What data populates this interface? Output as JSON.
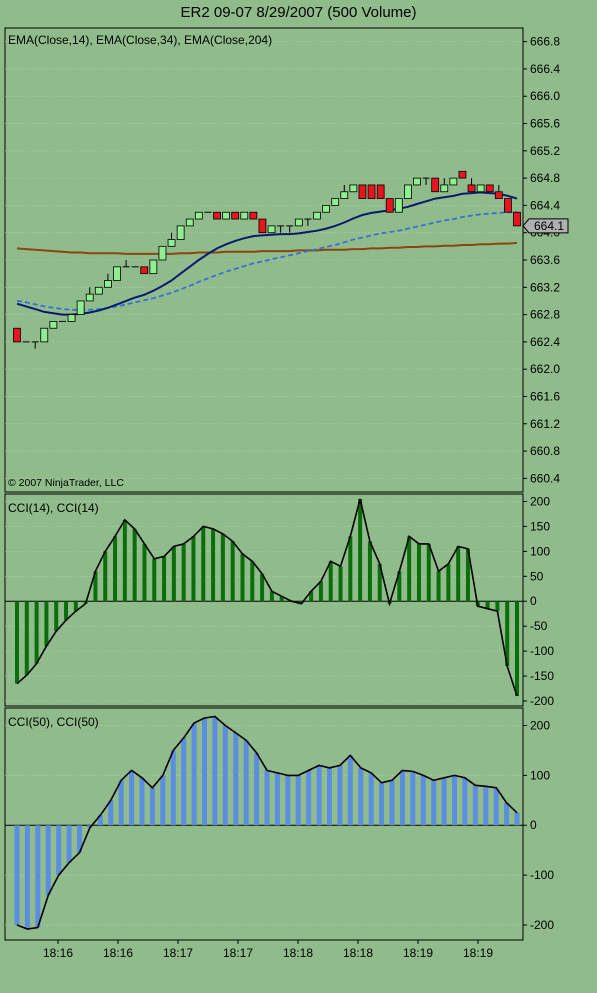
{
  "title": "ER2 09-07  8/29/2007  (500 Volume)",
  "colors": {
    "background": "#8fbc8a",
    "grid": "#c8d6c4",
    "axis": "#000000",
    "up_candle": "#90ee90",
    "down_candle": "#e8141e",
    "ema14": "#0a1a6e",
    "ema34": "#3a6fd6",
    "ema204": "#8b4513",
    "cci14_bar": "#0a6e0a",
    "cci50_bar": "#5b8de0",
    "cci_line": "#000000",
    "price_marker": "#b0b0b0"
  },
  "chart_data": [
    {
      "type": "candlestick",
      "name": "price-panel",
      "title": "EMA(Close,14), EMA(Close,34), EMA(Close,204)",
      "copyright": "© 2007 NinjaTrader, LLC",
      "ylim": [
        660.2,
        667.0
      ],
      "yticks": [
        "666.8",
        "666.4",
        "666.0",
        "665.6",
        "665.2",
        "664.8",
        "664.4",
        "664.0",
        "663.6",
        "663.2",
        "662.8",
        "662.4",
        "662.0",
        "661.6",
        "661.2",
        "660.8",
        "660.4"
      ],
      "last_price_label": "664.1",
      "candles": [
        {
          "o": 662.6,
          "h": 662.6,
          "l": 662.4,
          "c": 662.4
        },
        {
          "o": 662.4,
          "h": 662.4,
          "l": 662.4,
          "c": 662.4
        },
        {
          "o": 662.4,
          "h": 662.4,
          "l": 662.3,
          "c": 662.4
        },
        {
          "o": 662.4,
          "h": 662.6,
          "l": 662.4,
          "c": 662.6
        },
        {
          "o": 662.6,
          "h": 662.7,
          "l": 662.6,
          "c": 662.7
        },
        {
          "o": 662.7,
          "h": 662.7,
          "l": 662.7,
          "c": 662.7
        },
        {
          "o": 662.7,
          "h": 662.8,
          "l": 662.7,
          "c": 662.8
        },
        {
          "o": 662.8,
          "h": 663.0,
          "l": 662.8,
          "c": 663.0
        },
        {
          "o": 663.0,
          "h": 663.2,
          "l": 663.0,
          "c": 663.1
        },
        {
          "o": 663.1,
          "h": 663.2,
          "l": 663.1,
          "c": 663.2
        },
        {
          "o": 663.2,
          "h": 663.4,
          "l": 663.2,
          "c": 663.3
        },
        {
          "o": 663.3,
          "h": 663.5,
          "l": 663.3,
          "c": 663.5
        },
        {
          "o": 663.5,
          "h": 663.6,
          "l": 663.5,
          "c": 663.5
        },
        {
          "o": 663.5,
          "h": 663.5,
          "l": 663.5,
          "c": 663.5
        },
        {
          "o": 663.5,
          "h": 663.5,
          "l": 663.4,
          "c": 663.4
        },
        {
          "o": 663.4,
          "h": 663.6,
          "l": 663.4,
          "c": 663.6
        },
        {
          "o": 663.6,
          "h": 663.8,
          "l": 663.6,
          "c": 663.8
        },
        {
          "o": 663.8,
          "h": 664.0,
          "l": 663.8,
          "c": 663.9
        },
        {
          "o": 663.9,
          "h": 664.1,
          "l": 663.9,
          "c": 664.1
        },
        {
          "o": 664.1,
          "h": 664.2,
          "l": 664.1,
          "c": 664.2
        },
        {
          "o": 664.2,
          "h": 664.3,
          "l": 664.2,
          "c": 664.3
        },
        {
          "o": 664.3,
          "h": 664.3,
          "l": 664.3,
          "c": 664.3
        },
        {
          "o": 664.3,
          "h": 664.3,
          "l": 664.2,
          "c": 664.2
        },
        {
          "o": 664.2,
          "h": 664.3,
          "l": 664.2,
          "c": 664.3
        },
        {
          "o": 664.3,
          "h": 664.3,
          "l": 664.2,
          "c": 664.2
        },
        {
          "o": 664.2,
          "h": 664.3,
          "l": 664.2,
          "c": 664.3
        },
        {
          "o": 664.3,
          "h": 664.3,
          "l": 664.2,
          "c": 664.2
        },
        {
          "o": 664.2,
          "h": 664.2,
          "l": 664.0,
          "c": 664.0
        },
        {
          "o": 664.0,
          "h": 664.1,
          "l": 664.0,
          "c": 664.1
        },
        {
          "o": 664.1,
          "h": 664.1,
          "l": 664.0,
          "c": 664.1
        },
        {
          "o": 664.1,
          "h": 664.1,
          "l": 664.0,
          "c": 664.1
        },
        {
          "o": 664.1,
          "h": 664.2,
          "l": 664.1,
          "c": 664.2
        },
        {
          "o": 664.2,
          "h": 664.2,
          "l": 664.1,
          "c": 664.2
        },
        {
          "o": 664.2,
          "h": 664.3,
          "l": 664.2,
          "c": 664.3
        },
        {
          "o": 664.3,
          "h": 664.4,
          "l": 664.3,
          "c": 664.4
        },
        {
          "o": 664.4,
          "h": 664.5,
          "l": 664.4,
          "c": 664.5
        },
        {
          "o": 664.5,
          "h": 664.7,
          "l": 664.5,
          "c": 664.6
        },
        {
          "o": 664.6,
          "h": 664.7,
          "l": 664.6,
          "c": 664.7
        },
        {
          "o": 664.7,
          "h": 664.7,
          "l": 664.5,
          "c": 664.5
        },
        {
          "o": 664.7,
          "h": 664.7,
          "l": 664.5,
          "c": 664.5
        },
        {
          "o": 664.7,
          "h": 664.7,
          "l": 664.5,
          "c": 664.5
        },
        {
          "o": 664.5,
          "h": 664.5,
          "l": 664.3,
          "c": 664.3
        },
        {
          "o": 664.3,
          "h": 664.5,
          "l": 664.3,
          "c": 664.5
        },
        {
          "o": 664.5,
          "h": 664.7,
          "l": 664.5,
          "c": 664.7
        },
        {
          "o": 664.7,
          "h": 664.8,
          "l": 664.7,
          "c": 664.8
        },
        {
          "o": 664.8,
          "h": 664.8,
          "l": 664.7,
          "c": 664.8
        },
        {
          "o": 664.8,
          "h": 664.8,
          "l": 664.6,
          "c": 664.6
        },
        {
          "o": 664.6,
          "h": 664.8,
          "l": 664.6,
          "c": 664.7
        },
        {
          "o": 664.7,
          "h": 664.8,
          "l": 664.7,
          "c": 664.8
        },
        {
          "o": 664.9,
          "h": 664.9,
          "l": 664.8,
          "c": 664.8
        },
        {
          "o": 664.7,
          "h": 664.8,
          "l": 664.6,
          "c": 664.6
        },
        {
          "o": 664.6,
          "h": 664.7,
          "l": 664.6,
          "c": 664.7
        },
        {
          "o": 664.7,
          "h": 664.7,
          "l": 664.6,
          "c": 664.6
        },
        {
          "o": 664.6,
          "h": 664.7,
          "l": 664.5,
          "c": 664.5
        },
        {
          "o": 664.5,
          "h": 664.5,
          "l": 664.3,
          "c": 664.3
        },
        {
          "o": 664.3,
          "h": 664.3,
          "l": 664.1,
          "c": 664.1
        }
      ],
      "ema14": [
        662.96,
        662.92,
        662.88,
        662.84,
        662.82,
        662.8,
        662.8,
        662.81,
        662.83,
        662.86,
        662.9,
        662.95,
        663.0,
        663.05,
        663.09,
        663.15,
        663.22,
        663.3,
        663.4,
        663.5,
        663.6,
        663.69,
        663.77,
        663.83,
        663.88,
        663.92,
        663.95,
        663.96,
        663.97,
        663.98,
        663.98,
        663.99,
        664.01,
        664.03,
        664.06,
        664.1,
        664.15,
        664.21,
        664.26,
        664.29,
        664.31,
        664.33,
        664.35,
        664.38,
        664.42,
        664.46,
        664.5,
        664.52,
        664.54,
        664.57,
        664.58,
        664.59,
        664.58,
        664.57,
        664.54,
        664.5
      ],
      "ema34": [
        663.0,
        662.98,
        662.95,
        662.92,
        662.9,
        662.88,
        662.87,
        662.87,
        662.87,
        662.88,
        662.9,
        662.92,
        662.95,
        662.98,
        663.01,
        663.04,
        663.08,
        663.12,
        663.17,
        663.22,
        663.28,
        663.33,
        663.38,
        663.43,
        663.47,
        663.51,
        663.55,
        663.58,
        663.61,
        663.64,
        663.67,
        663.7,
        663.73,
        663.76,
        663.79,
        663.82,
        663.86,
        663.9,
        663.93,
        663.96,
        663.99,
        664.01,
        664.03,
        664.06,
        664.09,
        664.12,
        664.15,
        664.18,
        664.2,
        664.23,
        664.25,
        664.27,
        664.28,
        664.29,
        664.3,
        664.3
      ],
      "ema204": [
        663.77,
        663.76,
        663.75,
        663.74,
        663.73,
        663.72,
        663.71,
        663.71,
        663.7,
        663.7,
        663.7,
        663.7,
        663.69,
        663.69,
        663.69,
        663.69,
        663.69,
        663.69,
        663.7,
        663.7,
        663.71,
        663.71,
        663.71,
        663.72,
        663.72,
        663.72,
        663.72,
        663.73,
        663.73,
        663.73,
        663.73,
        663.74,
        663.74,
        663.74,
        663.75,
        663.75,
        663.75,
        663.76,
        663.76,
        663.77,
        663.77,
        663.78,
        663.78,
        663.79,
        663.79,
        663.8,
        663.8,
        663.81,
        663.81,
        663.82,
        663.82,
        663.83,
        663.83,
        663.84,
        663.84,
        663.85
      ]
    },
    {
      "type": "bar",
      "name": "cci14-panel",
      "title": "CCI(14), CCI(14)",
      "ylim": [
        -210,
        215
      ],
      "yticks": [
        "200",
        "150",
        "100",
        "50",
        "0",
        "-50",
        "-100",
        "-150",
        "-200"
      ],
      "values": [
        -165,
        -148,
        -125,
        -90,
        -60,
        -38,
        -20,
        -5,
        60,
        100,
        130,
        163,
        145,
        115,
        85,
        90,
        110,
        115,
        130,
        150,
        145,
        135,
        120,
        95,
        80,
        55,
        20,
        10,
        0,
        -5,
        20,
        40,
        80,
        70,
        130,
        205,
        120,
        75,
        -5,
        60,
        130,
        115,
        115,
        60,
        75,
        110,
        105,
        -10,
        -15,
        -20,
        -130,
        -190
      ]
    },
    {
      "type": "bar",
      "name": "cci50-panel",
      "title": "CCI(50), CCI(50)",
      "ylim": [
        -230,
        235
      ],
      "yticks": [
        "200",
        "100",
        "0",
        "-100",
        "-200"
      ],
      "values": [
        -200,
        -208,
        -205,
        -140,
        -100,
        -75,
        -55,
        -5,
        20,
        50,
        90,
        110,
        95,
        75,
        100,
        150,
        175,
        205,
        215,
        218,
        200,
        185,
        170,
        145,
        110,
        105,
        100,
        100,
        110,
        120,
        115,
        120,
        140,
        115,
        105,
        85,
        90,
        110,
        108,
        100,
        90,
        95,
        100,
        95,
        80,
        78,
        75,
        45,
        25
      ]
    }
  ],
  "x_axis": {
    "ticks": [
      "18:16",
      "18:16",
      "18:17",
      "18:17",
      "18:18",
      "18:18",
      "18:19",
      "18:19"
    ]
  }
}
